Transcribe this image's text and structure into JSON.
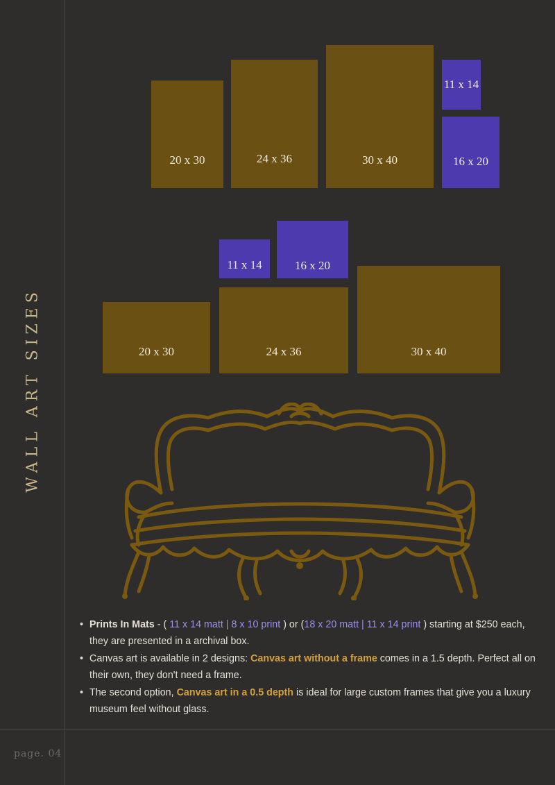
{
  "side_title": "WALL ART SIZES",
  "page_number": "page. 04",
  "arrangement_1": [
    {
      "label": "20 x 30",
      "color": "#6a5013"
    },
    {
      "label": "24 x 36",
      "color": "#6a5013"
    },
    {
      "label": "30 x 40",
      "color": "#6a5013"
    },
    {
      "label": "11 x 14",
      "color": "#4c3aae"
    },
    {
      "label": "16 x 20",
      "color": "#4c3aae"
    }
  ],
  "arrangement_2": [
    {
      "label": "11 x 14",
      "color": "#4c3aae"
    },
    {
      "label": "16 x 20",
      "color": "#4c3aae"
    },
    {
      "label": "20 x 30",
      "color": "#6a5013"
    },
    {
      "label": "24 x 36",
      "color": "#6a5013"
    },
    {
      "label": "30 x 40",
      "color": "#6a5013"
    }
  ],
  "illustration": "sofa-illustration",
  "info": {
    "item1": {
      "title": "Prints In Mats",
      "sep": " -  ( ",
      "opt1": "11 x 14 matt | 8 x 10 print",
      "mid": " ) or  (",
      "opt2": "18 x 20 matt | 11 x 14 print",
      "rest": " ) starting at $250 each, they are presented in a archival box."
    },
    "item2": {
      "pre": "Canvas art is available in 2 designs:  ",
      "highlight": "Canvas art without a frame",
      "rest": " comes in a 1.5 depth. Perfect all on their own, they don't need a frame."
    },
    "item3": {
      "pre": "The second option, ",
      "highlight": "Canvas art in a 0.5 depth",
      "rest": " is ideal for large custom frames that give you a luxury museum feel without glass."
    }
  }
}
